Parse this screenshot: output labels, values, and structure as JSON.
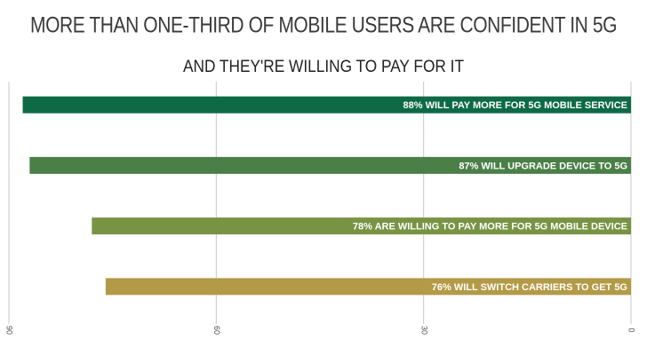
{
  "chart_data": {
    "type": "hbar",
    "title": "MORE THAN ONE-THIRD OF MOBILE USERS ARE CONFIDENT IN 5G",
    "subtitle": "AND THEY'RE WILLING TO PAY FOR IT",
    "categories": [
      "88% WILL PAY MORE FOR 5G MOBILE SERVICE",
      "87% WILL UPGRADE DEVICE TO 5G",
      "78% ARE WILLING TO PAY MORE FOR 5G MOBILE DEVICE",
      "76% WILL SWITCH CARRIERS TO GET 5G"
    ],
    "values": [
      88,
      87,
      78,
      76
    ],
    "colors": [
      "#0d6a45",
      "#4a7f48",
      "#789343",
      "#b39a47"
    ],
    "xlim": [
      90,
      0
    ],
    "xticks": [
      90,
      60,
      30,
      0
    ],
    "grid": true
  }
}
